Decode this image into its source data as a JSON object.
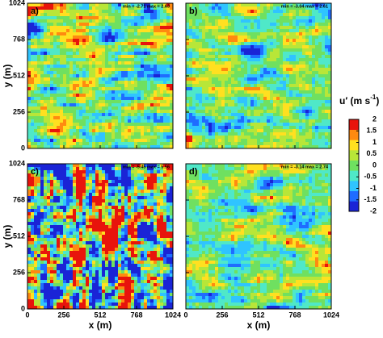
{
  "chart_data": [
    {
      "type": "heatmap",
      "label": "a)",
      "annotation": "min = -2.71  max = 2.63"
    },
    {
      "type": "heatmap",
      "label": "b)",
      "annotation": "min = -3.04  max = 2.61"
    },
    {
      "type": "heatmap",
      "label": "c)",
      "annotation": "min = -5.45  max = 5.56"
    },
    {
      "type": "heatmap",
      "label": "d)",
      "annotation": "min = -3.14  max = 2.74"
    }
  ],
  "axes": {
    "xlabel": "x (m)",
    "ylabel": "y (m)",
    "xlim": [
      0,
      1024
    ],
    "ylim": [
      0,
      1024
    ],
    "xticks": [
      0,
      256,
      512,
      768,
      1024
    ],
    "yticks": [
      0,
      256,
      512,
      768,
      1024
    ]
  },
  "colorbar": {
    "title": "u′ (m s",
    "title_sup": "-1",
    "title_end": ")",
    "clim": [
      -2,
      2
    ],
    "ticks": [
      -2,
      -1.5,
      -1,
      -0.5,
      0,
      0.5,
      1,
      1.5,
      2
    ],
    "colors": [
      "#1a24d6",
      "#1f6cff",
      "#2fc4ff",
      "#4fe8c8",
      "#6fe060",
      "#b8e638",
      "#ffe020",
      "#ff8a10",
      "#e8140c"
    ]
  }
}
